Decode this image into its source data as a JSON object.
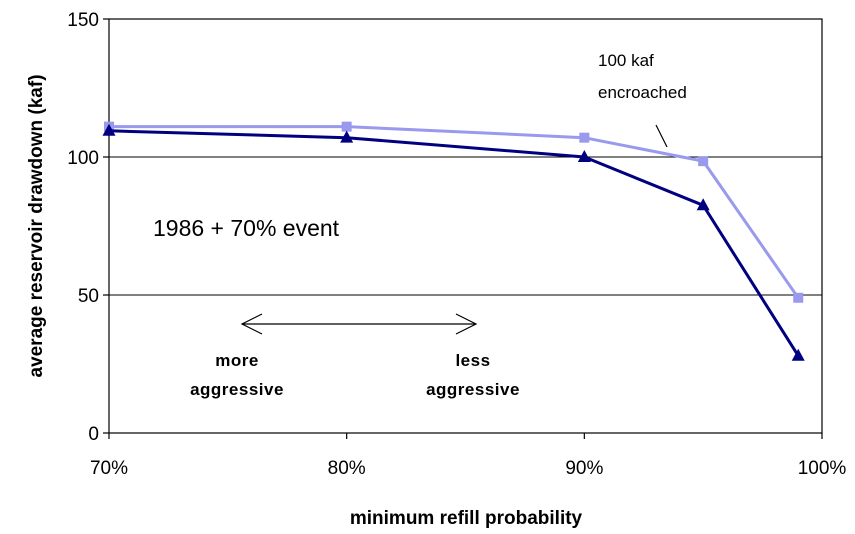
{
  "chart_data": {
    "type": "line",
    "title": "",
    "xlabel": "minimum refill probability",
    "ylabel": "average reservoir drawdown (kaf)",
    "xlim": [
      0.7,
      1.0
    ],
    "ylim": [
      0,
      150
    ],
    "x_ticks": [
      0.7,
      0.8,
      0.9,
      1.0
    ],
    "x_tick_labels": [
      "70%",
      "80%",
      "90%",
      "100%"
    ],
    "y_ticks": [
      0,
      50,
      100,
      150
    ],
    "y_tick_labels": [
      "0",
      "50",
      "100",
      "150"
    ],
    "gridlines_y": [
      50,
      100
    ],
    "legend": "none",
    "series": [
      {
        "color": "#9999ee",
        "marker": "square",
        "x": [
          0.7,
          0.8,
          0.9,
          0.95,
          0.99
        ],
        "y": [
          111,
          111,
          107,
          98.5,
          49
        ]
      },
      {
        "color": "#000080",
        "marker": "triangle",
        "x": [
          0.7,
          0.8,
          0.9,
          0.95,
          0.99
        ],
        "y": [
          109.5,
          107,
          100,
          82.5,
          28
        ]
      }
    ],
    "annotations": {
      "encroached_line1": "100 kaf",
      "encroached_line2": "encroached",
      "event": "1986 + 70% event",
      "more_line1": "more",
      "more_line2": "aggressive",
      "less_line1": "less",
      "less_line2": "aggressive"
    }
  }
}
